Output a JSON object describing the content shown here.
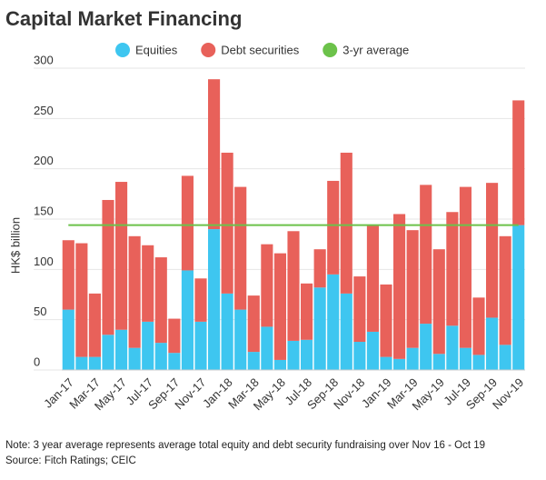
{
  "chart_data": {
    "type": "bar",
    "title": "Capital Market Financing",
    "y_label": "HK$ billion",
    "note": "Note: 3 year average represents average total equity and debt security fundraising over Nov 16 - Oct 19",
    "source": "Source: Fitch Ratings; CEIC",
    "categories": [
      "Jan-17",
      null,
      "Mar-17",
      null,
      "May-17",
      null,
      "Jul-17",
      null,
      "Sep-17",
      null,
      "Nov-17",
      null,
      "Jan-18",
      null,
      "Mar-18",
      null,
      "May-18",
      null,
      "Jul-18",
      null,
      "Sep-18",
      null,
      "Nov-18",
      null,
      "Jan-19",
      null,
      "Mar-19",
      null,
      "May-19",
      null,
      "Jul-19",
      null,
      "Sep-19",
      null,
      "Nov-19"
    ],
    "series": [
      {
        "name": "Equities",
        "color": "#3ec6f0",
        "values": [
          60,
          13,
          13,
          35,
          40,
          22,
          48,
          27,
          17,
          99,
          48,
          140,
          76,
          60,
          18,
          43,
          10,
          29,
          30,
          82,
          95,
          76,
          28,
          38,
          13,
          11,
          22,
          46,
          16,
          44,
          22,
          15,
          52,
          25,
          144
        ]
      },
      {
        "name": "Debt securities",
        "color": "#e8615a",
        "values": [
          69,
          113,
          63,
          134,
          147,
          111,
          76,
          85,
          34,
          94,
          43,
          149,
          140,
          122,
          56,
          82,
          106,
          109,
          56,
          38,
          93,
          140,
          65,
          106,
          72,
          144,
          117,
          138,
          104,
          113,
          160,
          57,
          134,
          108,
          124
        ]
      },
      {
        "name": "3-yr average",
        "color": "#6cc24a",
        "type": "line",
        "values": [
          144,
          144,
          144,
          144,
          144,
          144,
          144,
          144,
          144,
          144,
          144,
          144,
          144,
          144,
          144,
          144,
          144,
          144,
          144,
          144,
          144,
          144,
          144,
          144,
          144,
          144,
          144,
          144,
          144,
          144,
          144,
          144,
          144,
          144,
          144
        ]
      }
    ],
    "stacked": true,
    "ylim": [
      0,
      300
    ],
    "yticks": [
      0,
      50,
      100,
      150,
      200,
      250,
      300
    ],
    "grid": true,
    "legend": "top"
  }
}
